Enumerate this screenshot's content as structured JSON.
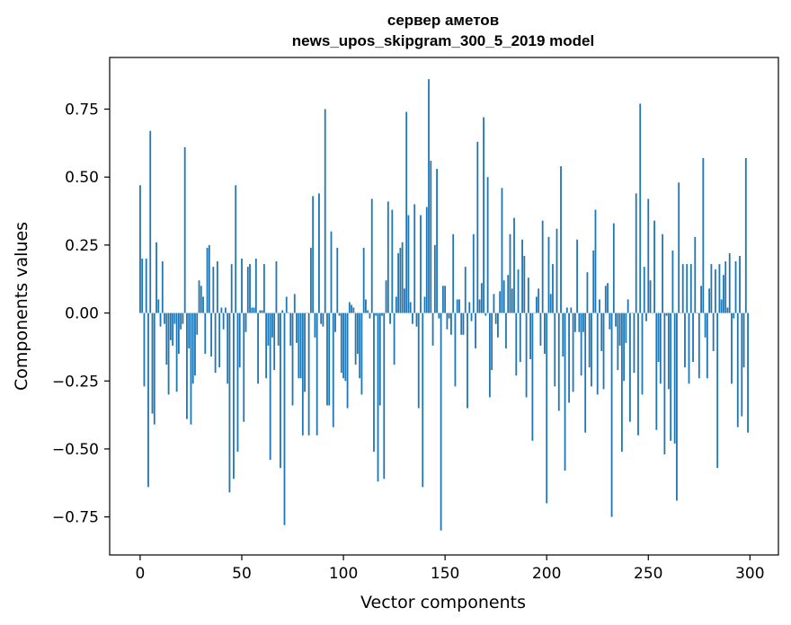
{
  "chart_data": {
    "type": "bar",
    "title": "сервер аметов",
    "subtitle": "news_upos_skipgram_300_5_2019 model",
    "xlabel": "Vector components",
    "ylabel": "Components values",
    "xlim": [
      -15,
      314
    ],
    "ylim": [
      -0.89,
      0.94
    ],
    "xticks": [
      0,
      50,
      100,
      150,
      200,
      250,
      300
    ],
    "xtick_labels": [
      "0",
      "50",
      "100",
      "150",
      "200",
      "250",
      "300"
    ],
    "yticks": [
      -0.75,
      -0.5,
      -0.25,
      0.0,
      0.25,
      0.5,
      0.75
    ],
    "ytick_labels": [
      "−0.75",
      "−0.50",
      "−0.25",
      "0.00",
      "0.25",
      "0.50",
      "0.75"
    ],
    "bar_color": "#1f77b4",
    "series": [
      {
        "name": "components",
        "values": [
          0.47,
          0.2,
          -0.27,
          0.2,
          -0.64,
          0.67,
          -0.37,
          -0.41,
          0.26,
          0.05,
          -0.05,
          0.19,
          -0.04,
          -0.19,
          -0.3,
          -0.1,
          -0.12,
          -0.04,
          -0.29,
          -0.15,
          -0.06,
          -0.04,
          0.61,
          -0.39,
          -0.13,
          -0.41,
          -0.26,
          -0.23,
          -0.08,
          0.12,
          0.1,
          0.06,
          -0.15,
          0.24,
          0.25,
          -0.16,
          0.17,
          -0.22,
          0.19,
          -0.2,
          0.02,
          -0.06,
          0.02,
          -0.26,
          -0.66,
          0.18,
          -0.61,
          0.47,
          -0.51,
          -0.2,
          0.2,
          -0.4,
          -0.07,
          0.17,
          0.18,
          0.02,
          0.02,
          0.2,
          -0.26,
          0.01,
          0.01,
          0.18,
          -0.24,
          -0.12,
          -0.54,
          -0.09,
          -0.21,
          0.19,
          -0.12,
          -0.57,
          0.01,
          -0.78,
          0.06,
          0.0,
          -0.12,
          -0.34,
          0.07,
          -0.11,
          -0.24,
          -0.24,
          -0.45,
          -0.29,
          0.0,
          -0.45,
          0.24,
          0.43,
          -0.09,
          -0.45,
          0.44,
          -0.04,
          -0.05,
          0.75,
          -0.34,
          -0.34,
          0.3,
          -0.42,
          -0.07,
          0.24,
          -0.01,
          -0.22,
          -0.24,
          -0.25,
          -0.35,
          0.04,
          0.03,
          0.02,
          -0.19,
          -0.15,
          -0.24,
          -0.3,
          0.24,
          0.05,
          0.01,
          -0.02,
          0.42,
          -0.51,
          -0.01,
          -0.62,
          -0.34,
          -0.01,
          -0.61,
          0.12,
          0.41,
          -0.04,
          0.38,
          -0.19,
          0.06,
          0.22,
          0.24,
          0.26,
          0.09,
          0.74,
          0.36,
          0.04,
          -0.04,
          0.4,
          -0.05,
          -0.35,
          0.36,
          -0.64,
          0.06,
          0.39,
          0.86,
          0.56,
          -0.12,
          0.25,
          0.53,
          -0.02,
          -0.8,
          0.1,
          0.1,
          -0.06,
          -0.02,
          -0.08,
          0.29,
          -0.27,
          0.05,
          0.05,
          -0.08,
          -0.08,
          0.17,
          -0.35,
          0.04,
          -0.03,
          0.29,
          -0.13,
          0.63,
          0.05,
          0.11,
          0.72,
          -0.01,
          0.5,
          -0.31,
          -0.21,
          0.07,
          -0.04,
          -0.09,
          0.08,
          0.46,
          0.12,
          -0.13,
          0.14,
          0.29,
          0.09,
          0.35,
          -0.23,
          0.16,
          -0.18,
          0.27,
          0.21,
          -0.31,
          0.13,
          -0.17,
          -0.47,
          0.0,
          0.06,
          0.09,
          -0.12,
          0.34,
          -0.15,
          -0.7,
          0.28,
          0.07,
          0.18,
          -0.27,
          0.31,
          -0.36,
          0.54,
          -0.16,
          -0.58,
          0.02,
          -0.33,
          0.02,
          -0.29,
          -0.07,
          0.27,
          -0.07,
          -0.23,
          -0.07,
          -0.44,
          0.15,
          -0.2,
          -0.27,
          0.23,
          0.38,
          -0.3,
          0.05,
          -0.14,
          -0.28,
          0.1,
          0.11,
          -0.06,
          -0.75,
          0.33,
          -0.05,
          -0.21,
          -0.12,
          -0.51,
          -0.25,
          -0.11,
          0.05,
          -0.4,
          0.0,
          -0.22,
          0.44,
          -0.45,
          0.77,
          -0.3,
          0.17,
          -0.03,
          0.42,
          0.12,
          0.0,
          0.34,
          -0.43,
          -0.18,
          -0.26,
          0.29,
          -0.52,
          -0.01,
          -0.28,
          -0.47,
          0.23,
          -0.48,
          -0.69,
          0.48,
          0.0,
          0.18,
          -0.2,
          0.18,
          -0.26,
          0.18,
          -0.18,
          0.28,
          0.0,
          -0.24,
          0.1,
          0.57,
          -0.09,
          -0.24,
          0.09,
          0.18,
          -0.14,
          0.16,
          -0.57,
          0.18,
          0.05,
          0.14,
          0.19,
          0.02,
          0.22,
          -0.26,
          -0.02,
          0.19,
          -0.42,
          0.21,
          -0.38,
          -0.2,
          0.57,
          -0.44
        ]
      }
    ]
  }
}
